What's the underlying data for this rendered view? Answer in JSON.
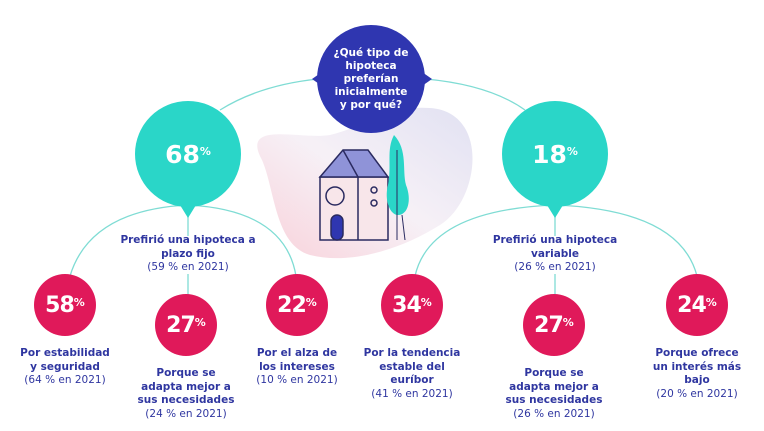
{
  "question": "¿Qué tipo de hipoteca preferían inicialmente y por qué?",
  "colors": {
    "question": "#2f36b0",
    "main": "#2ad6c8",
    "reason": "#e0195a",
    "text": "#2f36a0",
    "line": "#7fdcd4"
  },
  "fixed": {
    "value": "68",
    "unit": "%",
    "label": "Prefirió una hipoteca a plazo fijo",
    "sub": "(59 % en 2021)",
    "reasons": [
      {
        "value": "58",
        "unit": "%",
        "label": "Por estabilidad y seguridad",
        "sub": "(64 % en 2021)"
      },
      {
        "value": "27",
        "unit": "%",
        "label": "Porque se adapta mejor a sus necesidades",
        "sub": "(24 % en 2021)"
      },
      {
        "value": "22",
        "unit": "%",
        "label": "Por el alza de los intereses",
        "sub": "(10 % en 2021)"
      }
    ]
  },
  "variable": {
    "value": "18",
    "unit": "%",
    "label": "Prefirió una hipoteca variable",
    "sub": "(26 % en 2021)",
    "reasons": [
      {
        "value": "34",
        "unit": "%",
        "label": "Por la tendencia estable del euríbor",
        "sub": "(41 % en 2021)"
      },
      {
        "value": "27",
        "unit": "%",
        "label": "Porque se adapta mejor a sus necesidades",
        "sub": "(26 % en 2021)"
      },
      {
        "value": "24",
        "unit": "%",
        "label": "Porque ofrece un interés más bajo",
        "sub": "(20 % en 2021)"
      }
    ]
  }
}
